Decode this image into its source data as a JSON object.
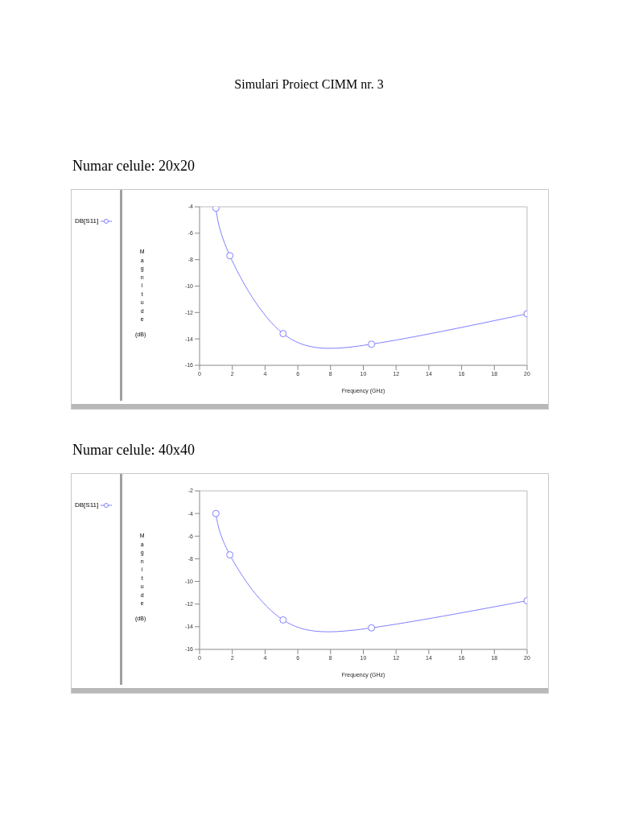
{
  "chart_data": [
    {
      "type": "line",
      "title": "Numar celule: 20x20",
      "annotations": [
        "Simulari Proiect CIMM nr. 3"
      ],
      "xlabel": "Frequency (GHz)",
      "ylabel": "Magnitude (dB)",
      "x": [
        1,
        1.85,
        5.1,
        10.5,
        20
      ],
      "series": [
        {
          "name": "DB[S11]",
          "color": "#8080ff",
          "values": [
            -4.1,
            -7.7,
            -13.6,
            -14.4,
            -12.1
          ]
        }
      ],
      "xlim": [
        0,
        20
      ],
      "xticks": [
        0,
        2,
        4,
        6,
        8,
        10,
        12,
        14,
        16,
        18,
        20
      ],
      "ylim": [
        -16,
        -4
      ],
      "yticks": [
        -16,
        -14,
        -12,
        -10,
        -8,
        -6,
        -4
      ],
      "grid": false,
      "legend": "left",
      "marker": "circle",
      "line_style": "solid"
    },
    {
      "type": "line",
      "title": "Numar celule: 40x40",
      "xlabel": "Frequency (GHz)",
      "ylabel": "Magnitude (dB)",
      "x": [
        1,
        1.85,
        5.1,
        10.5,
        20
      ],
      "series": [
        {
          "name": "DB[S11]",
          "color": "#8080ff",
          "values": [
            -4.0,
            -7.65,
            -13.4,
            -14.1,
            -11.7
          ]
        }
      ],
      "xlim": [
        0,
        20
      ],
      "xticks": [
        0,
        2,
        4,
        6,
        8,
        10,
        12,
        14,
        16,
        18,
        20
      ],
      "ylim": [
        -16,
        -2
      ],
      "yticks": [
        -16,
        -14,
        -12,
        -10,
        -8,
        -6,
        -4,
        -2
      ],
      "grid": false,
      "legend": "left",
      "marker": "circle",
      "line_style": "solid"
    }
  ]
}
